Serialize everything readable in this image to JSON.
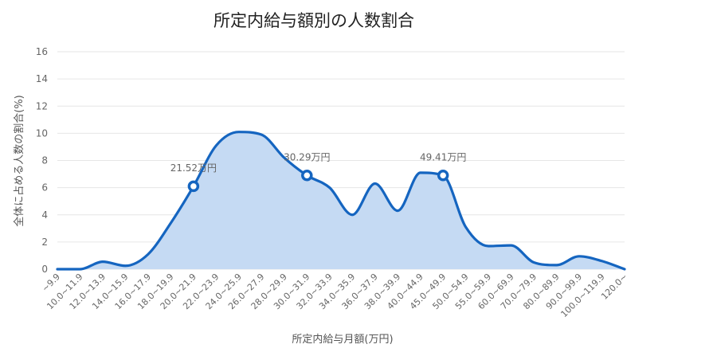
{
  "chart_data": {
    "type": "area",
    "title": "所定内給与額別の人数割合",
    "xlabel": "所定内給与月額(万円)",
    "ylabel": "全体に占める人数の割合(%)",
    "ylim": [
      0,
      16
    ],
    "yticks": [
      0,
      2,
      4,
      6,
      8,
      10,
      12,
      14,
      16
    ],
    "grid": true,
    "legend": "none",
    "categories": [
      "~9.9",
      "10.0~11.9",
      "12.0~13.9",
      "14.0~15.9",
      "16.0~17.9",
      "18.0~19.9",
      "20.0~21.9",
      "22.0~23.9",
      "24.0~25.9",
      "26.0~27.9",
      "28.0~29.9",
      "30.0~31.9",
      "32.0~33.9",
      "34.0~35.9",
      "36.0~37.9",
      "38.0~39.9",
      "40.0~44.9",
      "45.0~49.9",
      "50.0~54.9",
      "55.0~59.9",
      "60.0~69.9",
      "70.0~79.9",
      "80.0~89.9",
      "90.0~99.9",
      "100.0~119.9",
      "120.0~"
    ],
    "values": [
      0.0,
      0.0,
      0.55,
      0.25,
      1.1,
      3.4,
      6.1,
      9.1,
      10.1,
      9.9,
      8.2,
      6.9,
      6.0,
      4.0,
      6.3,
      4.3,
      7.1,
      6.9,
      3.1,
      1.7,
      1.75,
      0.5,
      0.3,
      0.95,
      0.6,
      0.0
    ],
    "colors": {
      "line": "#1565c0",
      "fill": "#c5daf3",
      "grid": "#e6e6e6"
    },
    "annotations": [
      {
        "label": "21.52万円",
        "category_index": 6
      },
      {
        "label": "30.29万円",
        "category_index": 11
      },
      {
        "label": "49.41万円",
        "category_index": 17
      }
    ]
  }
}
